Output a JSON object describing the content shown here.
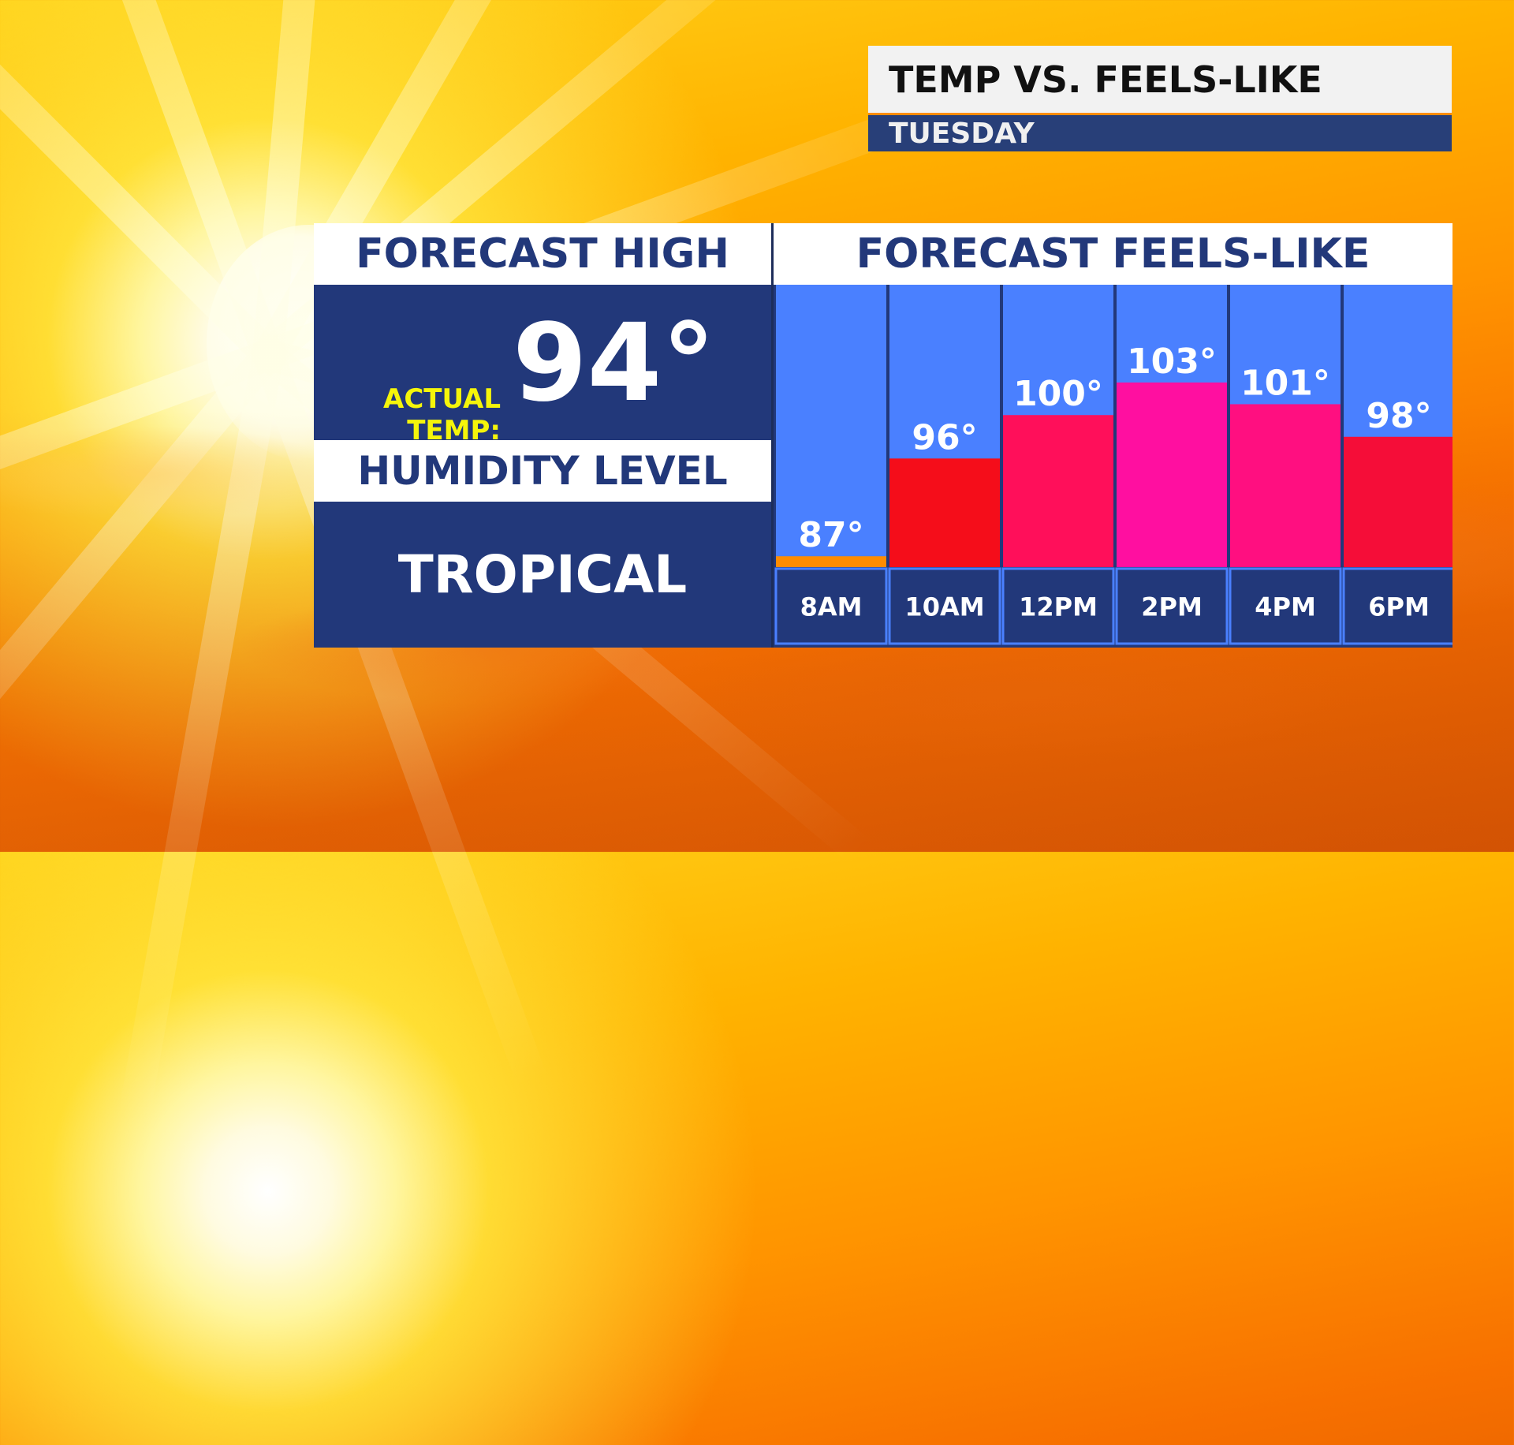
{
  "title": {
    "main": "TEMP VS. FEELS-LIKE",
    "day": "TUESDAY"
  },
  "forecast_high": {
    "header": "FORECAST HIGH",
    "actual_label_line1": "ACTUAL",
    "actual_label_line2": "TEMP:",
    "actual_value": "94°"
  },
  "humidity": {
    "header": "HUMIDITY LEVEL",
    "value": "TROPICAL"
  },
  "chart_data": {
    "type": "bar",
    "title": "FORECAST FEELS-LIKE",
    "categories": [
      "8AM",
      "10AM",
      "12PM",
      "2PM",
      "4PM",
      "6PM"
    ],
    "values": [
      87,
      96,
      100,
      103,
      101,
      98
    ],
    "value_labels": [
      "87°",
      "96°",
      "100°",
      "103°",
      "101°",
      "98°"
    ],
    "unit": "°",
    "ylim": [
      86,
      112
    ],
    "grid": false,
    "legend": "none",
    "colors": {
      "background": "#4a80ff",
      "label_bar": "#22387a",
      "bars": [
        "#ff8c00",
        "#f50d1a",
        "#ff0f5a",
        "#ff0fa0",
        "#ff0f80",
        "#f50d38"
      ]
    }
  }
}
